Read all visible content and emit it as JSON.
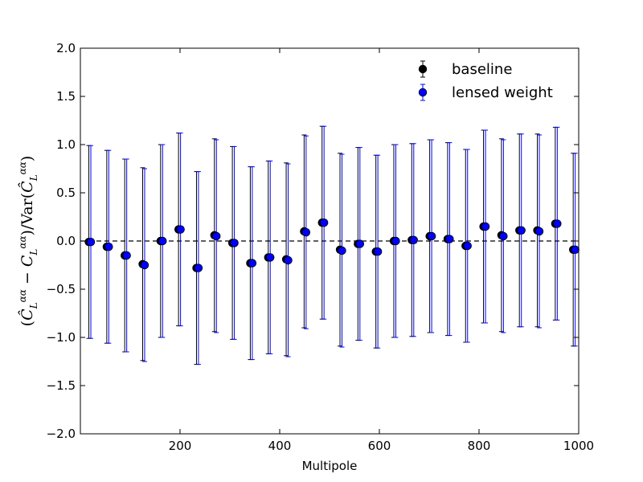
{
  "chart_data": {
    "type": "scatter",
    "title": "",
    "xlabel": "Multipole",
    "ylabel": "(Ĉ_L^{αα} − C_L^{αα}) / Var(Ĉ_L^{αα})",
    "xlim": [
      0,
      1000
    ],
    "ylim": [
      -2.0,
      2.0
    ],
    "x_ticks": [
      200,
      400,
      600,
      800,
      1000
    ],
    "x_tick_labels": [
      "200",
      "400",
      "600",
      "800",
      "1000"
    ],
    "y_ticks": [
      -2.0,
      -1.5,
      -1.0,
      -0.5,
      0.0,
      0.5,
      1.0,
      1.5,
      2.0
    ],
    "y_tick_labels": [
      "−2.0",
      "−1.5",
      "−1.0",
      "−0.5",
      "0.0",
      "0.5",
      "1.0",
      "1.5",
      "2.0"
    ],
    "reference_line": {
      "y": 0.0,
      "style": "dashed",
      "color": "#000000"
    },
    "legend_position": "top-right",
    "grid": false,
    "series": [
      {
        "name": "baseline",
        "color": "#000000",
        "x": [
          17,
          53,
          89,
          125,
          161,
          197,
          233,
          269,
          305,
          341,
          377,
          413,
          449,
          485,
          521,
          557,
          593,
          629,
          665,
          701,
          737,
          773,
          809,
          845,
          881,
          917,
          953,
          989
        ],
        "y": [
          -0.01,
          -0.06,
          -0.15,
          -0.24,
          0.0,
          0.12,
          -0.28,
          0.06,
          -0.02,
          -0.23,
          -0.17,
          -0.19,
          0.1,
          0.19,
          -0.09,
          -0.03,
          -0.11,
          0.0,
          0.01,
          0.05,
          0.02,
          -0.05,
          0.15,
          0.06,
          0.11,
          0.11,
          0.18,
          -0.09
        ],
        "yerr": 1.0
      },
      {
        "name": "lensed weight",
        "color": "#0000ff",
        "x": [
          21,
          57,
          93,
          129,
          165,
          201,
          237,
          273,
          309,
          345,
          381,
          417,
          453,
          489,
          525,
          561,
          597,
          633,
          669,
          705,
          741,
          777,
          813,
          849,
          885,
          921,
          957,
          993
        ],
        "y": [
          -0.01,
          -0.06,
          -0.15,
          -0.25,
          0.0,
          0.12,
          -0.28,
          0.05,
          -0.02,
          -0.23,
          -0.17,
          -0.2,
          0.09,
          0.19,
          -0.1,
          -0.03,
          -0.11,
          0.0,
          0.01,
          0.05,
          0.02,
          -0.05,
          0.15,
          0.05,
          0.11,
          0.1,
          0.18,
          -0.09
        ],
        "yerr": 1.0
      }
    ]
  }
}
